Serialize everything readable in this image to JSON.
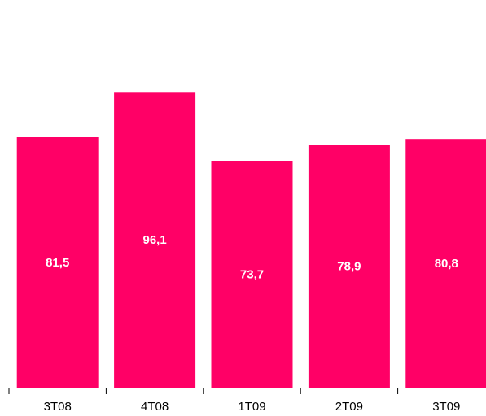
{
  "chart_data": {
    "type": "bar",
    "categories": [
      "3T08",
      "4T08",
      "1T09",
      "2T09",
      "3T09"
    ],
    "values": [
      81.5,
      96.1,
      73.7,
      78.9,
      80.8
    ],
    "value_labels": [
      "81,5",
      "96,1",
      "73,7",
      "78,9",
      "80,8"
    ],
    "title": "",
    "xlabel": "",
    "ylabel": "",
    "ylim": [
      0,
      125
    ],
    "grid": false,
    "legend": "none",
    "bar_color": "#FF0066",
    "label_color": "#FFFFFF"
  }
}
